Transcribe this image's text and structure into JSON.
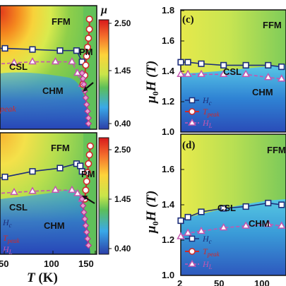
{
  "colors": {
    "hc": "#1d2e7a",
    "tpeak": "#cf2a2a",
    "hl": "#c456b0",
    "black": "#111111"
  },
  "chart_data": [
    {
      "panel": "left-top",
      "type": "heatmap",
      "xlim": [
        30,
        140
      ],
      "xticks": [],
      "region_labels": [
        "FFM",
        "PM",
        "CSL",
        "CHM"
      ],
      "legend": [
        "peak"
      ],
      "colorbar": {
        "label": "μ",
        "ticks": [
          "2.50",
          "1.45",
          "0.40"
        ]
      },
      "series": [
        {
          "key": "hc",
          "x": [
            30,
            40,
            70,
            100,
            118,
            124
          ],
          "y": [
            1.52,
            1.52,
            1.51,
            1.5,
            1.5,
            1.4
          ]
        },
        {
          "key": "hl",
          "x": [
            30,
            50,
            70,
            95,
            113,
            119,
            124
          ],
          "y": [
            1.38,
            1.39,
            1.4,
            1.4,
            1.4,
            1.3,
            1.2
          ]
        },
        {
          "key": "tpeak",
          "x": [
            132,
            132,
            131,
            130,
            129,
            128,
            127,
            125
          ],
          "y": [
            1.78,
            1.69,
            1.61,
            1.53,
            1.45,
            1.37,
            1.28,
            1.2
          ]
        },
        {
          "key": "pink",
          "x": [
            124,
            125,
            126,
            127,
            128,
            129,
            130,
            131,
            131
          ],
          "y": [
            1.3,
            1.25,
            1.2,
            1.14,
            1.08,
            1.02,
            0.96,
            0.9,
            0.85
          ]
        }
      ]
    },
    {
      "panel": "left-bottom",
      "type": "heatmap",
      "xlim": [
        30,
        140
      ],
      "xticks": [
        "50",
        "100",
        "150"
      ],
      "xlabel": "T (K)",
      "region_labels": [
        "FFM",
        "PM",
        "CSL",
        "CHM"
      ],
      "legend": [
        "Hc",
        "Tpeak",
        "HL"
      ],
      "colorbar": {
        "ticks": [
          "2.50",
          "1.45",
          "0.40"
        ]
      },
      "series": [
        {
          "key": "hc",
          "x": [
            30,
            40,
            70,
            100,
            118,
            122,
            124
          ],
          "y": [
            1.48,
            1.5,
            1.55,
            1.58,
            1.62,
            1.6,
            1.55
          ]
        },
        {
          "key": "hl",
          "x": [
            30,
            50,
            70,
            95,
            113,
            119,
            124
          ],
          "y": [
            1.35,
            1.36,
            1.37,
            1.38,
            1.38,
            1.35,
            1.3
          ]
        },
        {
          "key": "tpeak",
          "x": [
            133,
            132,
            131,
            130,
            129,
            128,
            127
          ],
          "y": [
            1.78,
            1.7,
            1.62,
            1.54,
            1.46,
            1.38,
            1.3
          ]
        },
        {
          "key": "pink",
          "x": [
            124,
            125,
            126,
            127,
            128,
            129,
            130,
            131
          ],
          "y": [
            1.3,
            1.24,
            1.18,
            1.12,
            1.06,
            1.0,
            0.94,
            0.88
          ]
        }
      ]
    },
    {
      "panel": "c",
      "type": "heatmap",
      "ylim": [
        1.0,
        1.8
      ],
      "yticks": [
        "1.8",
        "1.6",
        "1.4",
        "1.2",
        "1.0"
      ],
      "ylabel": "μ0H (T)",
      "region_labels": [
        "FFM",
        "CSL",
        "CHM"
      ],
      "legend": [
        "Hc",
        "Tpeak",
        "HL"
      ],
      "series": [
        {
          "key": "hc",
          "x": [
            2,
            10,
            25,
            50,
            75,
            100,
            115
          ],
          "y": [
            1.46,
            1.46,
            1.45,
            1.44,
            1.44,
            1.44,
            1.43
          ]
        },
        {
          "key": "hl",
          "x": [
            2,
            10,
            25,
            50,
            75,
            100,
            115
          ],
          "y": [
            1.38,
            1.38,
            1.38,
            1.38,
            1.38,
            1.36,
            1.35
          ]
        }
      ]
    },
    {
      "panel": "d",
      "type": "heatmap",
      "ylim": [
        1.0,
        1.8
      ],
      "yticks": [
        "1.8",
        "1.6",
        "1.4",
        "1.2",
        "1.0"
      ],
      "xticks": [
        "2",
        "50",
        "100"
      ],
      "ylabel": "μ0H (T)",
      "xlabel": "T (K)",
      "region_labels": [
        "FFM",
        "CSL",
        "CHM"
      ],
      "legend": [
        "Hc",
        "Tpeak",
        "HL"
      ],
      "series": [
        {
          "key": "hc",
          "x": [
            2,
            10,
            25,
            50,
            75,
            100,
            115
          ],
          "y": [
            1.31,
            1.33,
            1.36,
            1.38,
            1.39,
            1.41,
            1.4
          ]
        },
        {
          "key": "hl",
          "x": [
            2,
            10,
            25,
            50,
            75,
            100,
            115
          ],
          "y": [
            1.22,
            1.24,
            1.25,
            1.27,
            1.28,
            1.29,
            1.28
          ]
        }
      ]
    }
  ],
  "text": {
    "mu": "μ",
    "cbar_top": "2.50",
    "cbar_mid": "1.45",
    "cbar_bot": "0.40",
    "ffm": "FFM",
    "pm": "PM",
    "csl": "CSL",
    "chm": "CHM",
    "peak": "peak",
    "hc_main": "H",
    "hc_sub": "c",
    "tpeak_main": "T",
    "tpeak_sub": "peak",
    "hl_main": "H",
    "hl_sub": "L",
    "label_c": "(c)",
    "label_d": "(d)",
    "ylabel_mu": "μ",
    "ylabel_sub": "0",
    "ylabel_rest": "H (T)",
    "xlabel_t": "T",
    "xlabel_k": " (K)",
    "xt_50": "50",
    "xt_100": "100",
    "xt_150": "150",
    "xt_2": "2",
    "yt_18": "1.8",
    "yt_16": "1.6",
    "yt_14": "1.4",
    "yt_12": "1.2",
    "yt_10": "1.0"
  }
}
